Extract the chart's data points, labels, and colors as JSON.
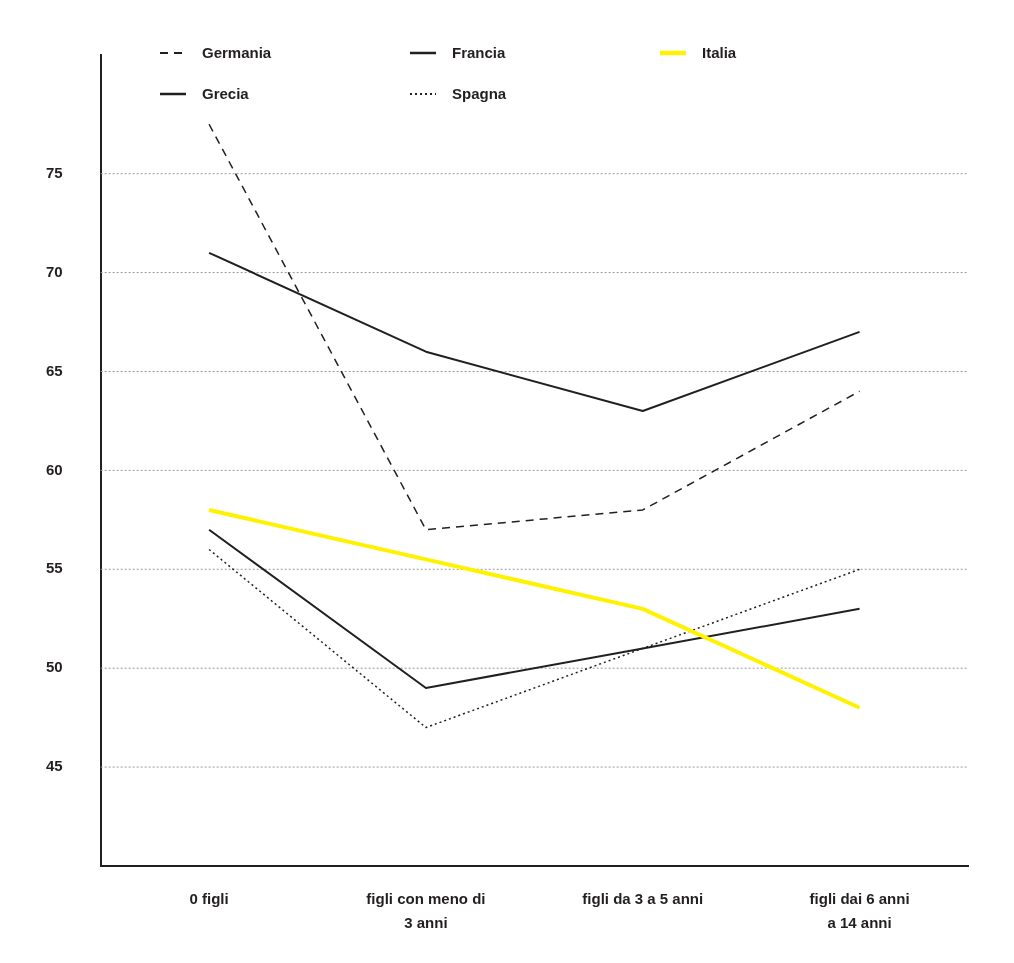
{
  "chart_data": {
    "type": "line",
    "categories": [
      "0 figli",
      "figli con meno di 3 anni",
      "figli da 3 a 5 anni",
      "figli dai 6 anni a 14 anni"
    ],
    "ylim": [
      40,
      81
    ],
    "yticks": [
      45,
      50,
      55,
      60,
      65,
      70,
      75
    ],
    "grid": "y",
    "legend": "top",
    "marker": "none",
    "series": [
      {
        "name": "Germania",
        "color": "#231f20",
        "line_style": "dashed",
        "values": [
          77.5,
          57,
          58,
          64
        ]
      },
      {
        "name": "Francia",
        "color": "#231f20",
        "line_style": "solid",
        "values": [
          71,
          66,
          63,
          67
        ]
      },
      {
        "name": "Italia",
        "color": "#fff200",
        "line_style": "solid",
        "values": [
          58,
          55.5,
          53,
          48
        ]
      },
      {
        "name": "Grecia",
        "color": "#231f20",
        "line_style": "solid",
        "values": [
          57,
          49,
          51,
          53
        ]
      },
      {
        "name": "Spagna",
        "color": "#231f20",
        "line_style": "dotted",
        "values": [
          56,
          47,
          51,
          55
        ]
      }
    ]
  }
}
